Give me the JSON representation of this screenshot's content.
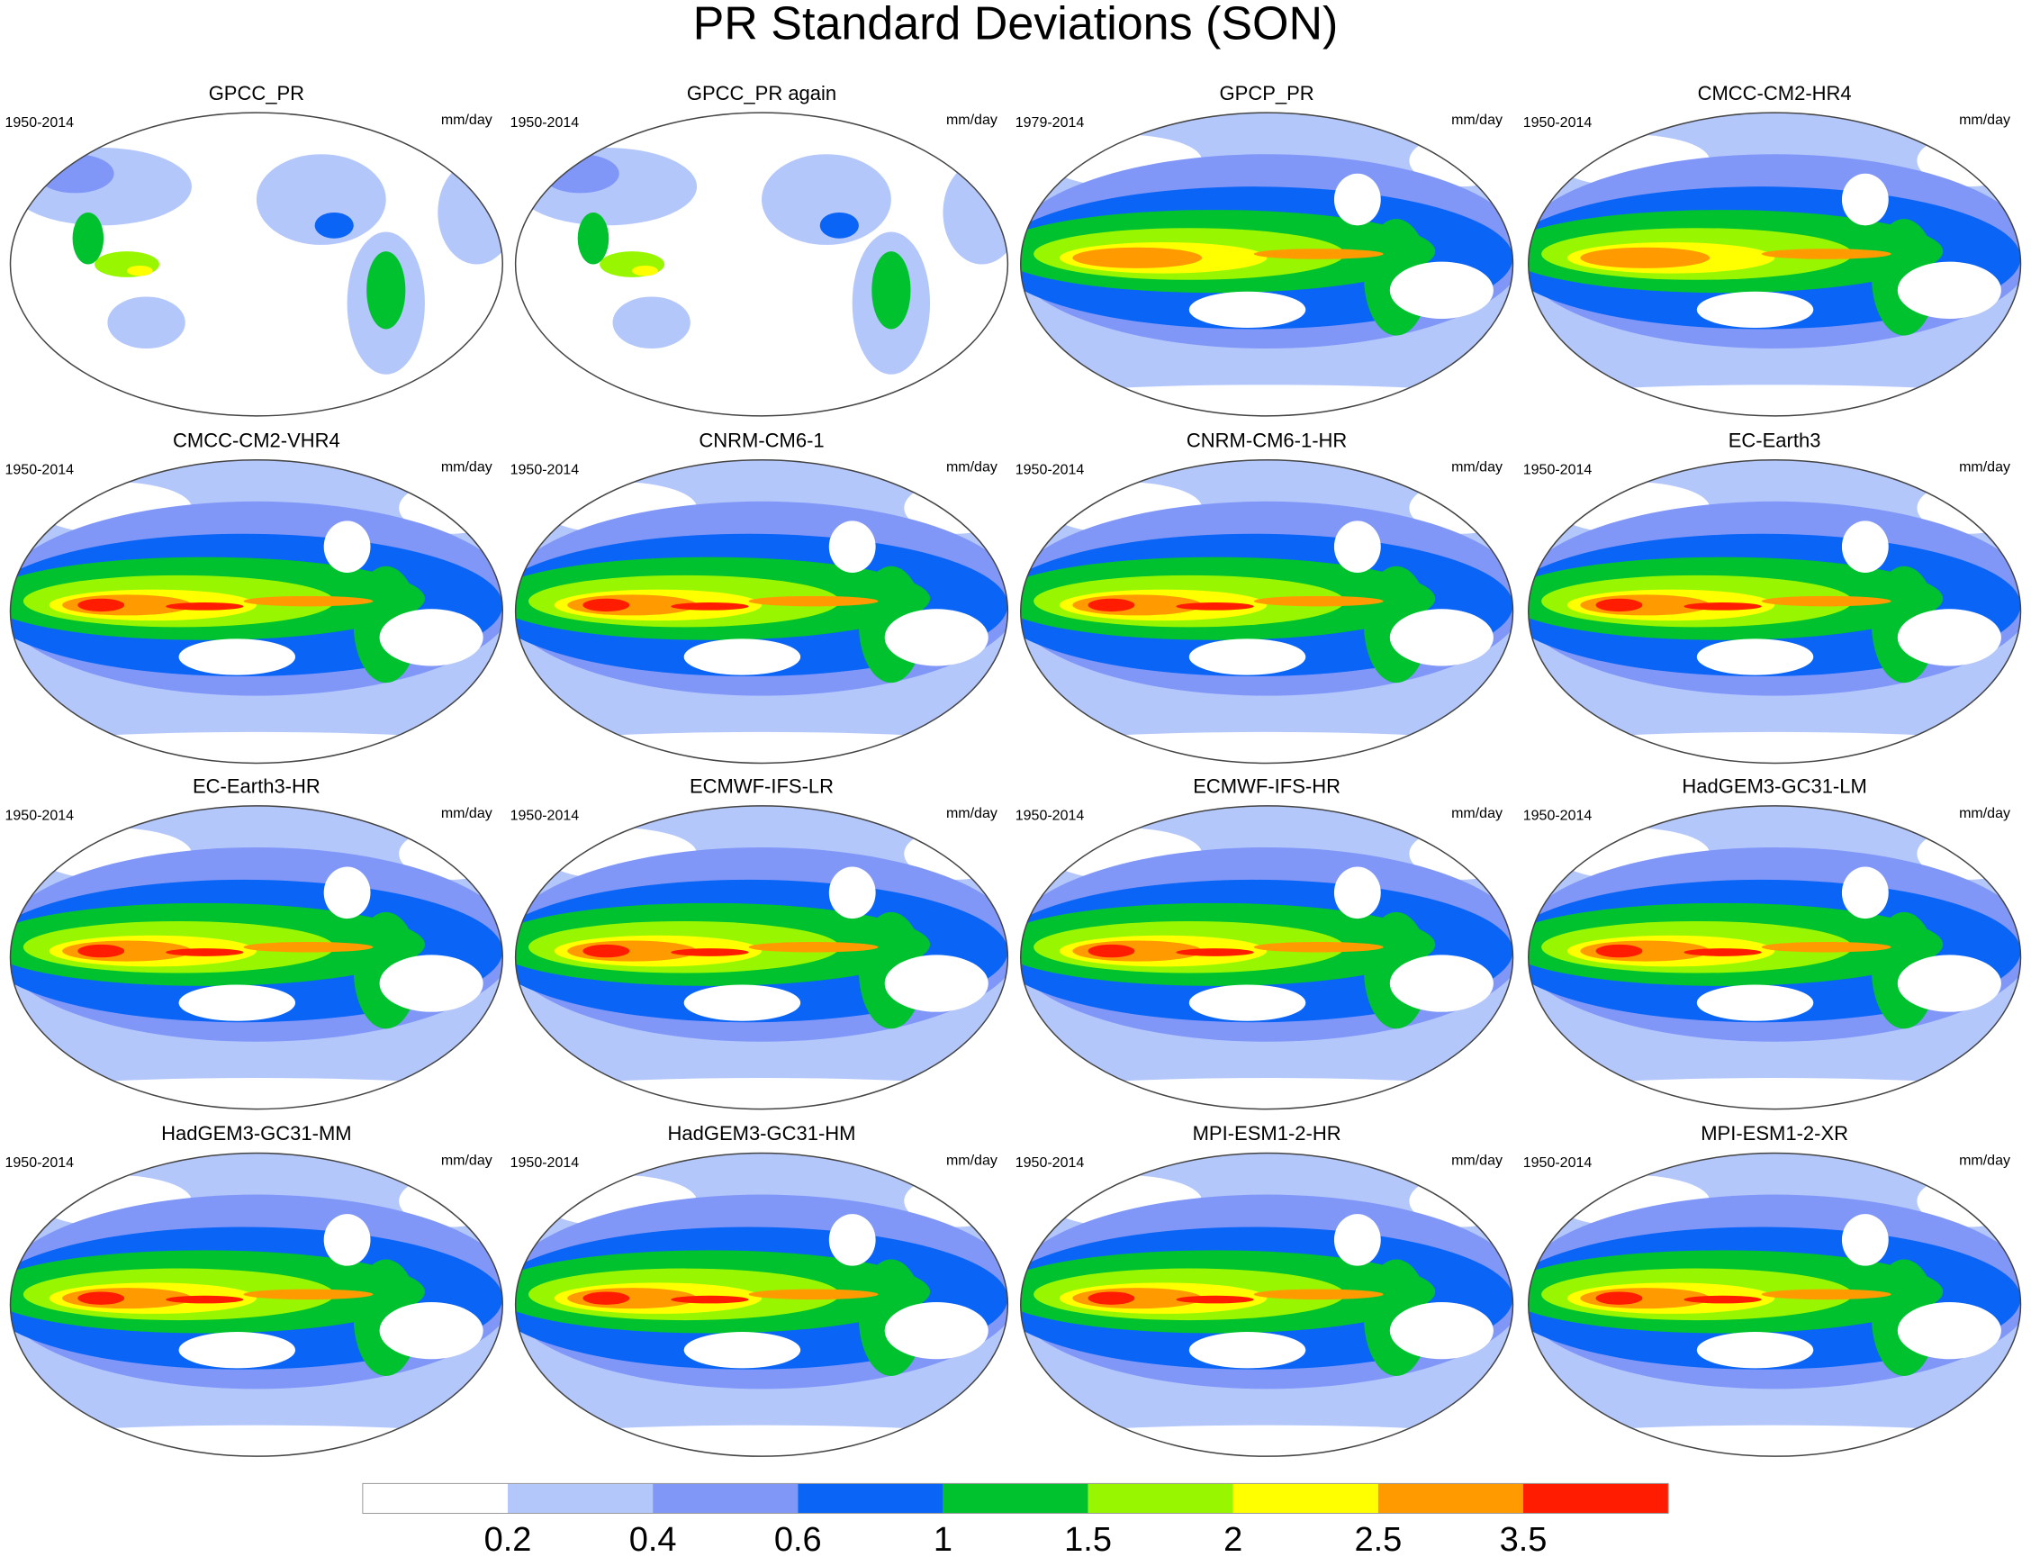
{
  "title": "PR Standard Deviations (SON)",
  "panels": [
    {
      "title": "GPCC_PR",
      "period": "1950-2014",
      "units": "mm/day"
    },
    {
      "title": "GPCC_PR again",
      "period": "1950-2014",
      "units": "mm/day"
    },
    {
      "title": "GPCP_PR",
      "period": "1979-2014",
      "units": "mm/day"
    },
    {
      "title": "CMCC-CM2-HR4",
      "period": "1950-2014",
      "units": "mm/day"
    },
    {
      "title": "CMCC-CM2-VHR4",
      "period": "1950-2014",
      "units": "mm/day"
    },
    {
      "title": "CNRM-CM6-1",
      "period": "1950-2014",
      "units": "mm/day"
    },
    {
      "title": "CNRM-CM6-1-HR",
      "period": "1950-2014",
      "units": "mm/day"
    },
    {
      "title": "EC-Earth3",
      "period": "1950-2014",
      "units": "mm/day"
    },
    {
      "title": "EC-Earth3-HR",
      "period": "1950-2014",
      "units": "mm/day"
    },
    {
      "title": "ECMWF-IFS-LR",
      "period": "1950-2014",
      "units": "mm/day"
    },
    {
      "title": "ECMWF-IFS-HR",
      "period": "1950-2014",
      "units": "mm/day"
    },
    {
      "title": "HadGEM3-GC31-LM",
      "period": "1950-2014",
      "units": "mm/day"
    },
    {
      "title": "HadGEM3-GC31-MM",
      "period": "1950-2014",
      "units": "mm/day"
    },
    {
      "title": "HadGEM3-GC31-HM",
      "period": "1950-2014",
      "units": "mm/day"
    },
    {
      "title": "MPI-ESM1-2-HR",
      "period": "1950-2014",
      "units": "mm/day"
    },
    {
      "title": "MPI-ESM1-2-XR",
      "period": "1950-2014",
      "units": "mm/day"
    }
  ],
  "colorbar": {
    "levels": [
      0.2,
      0.4,
      0.6,
      1,
      1.5,
      2,
      2.5,
      3.5
    ],
    "colors": [
      "#ffffff",
      "#b4c7fb",
      "#8097f8",
      "#0a64f5",
      "#00c22e",
      "#98f700",
      "#ffff00",
      "#ff9a00",
      "#ff1c00"
    ]
  }
}
